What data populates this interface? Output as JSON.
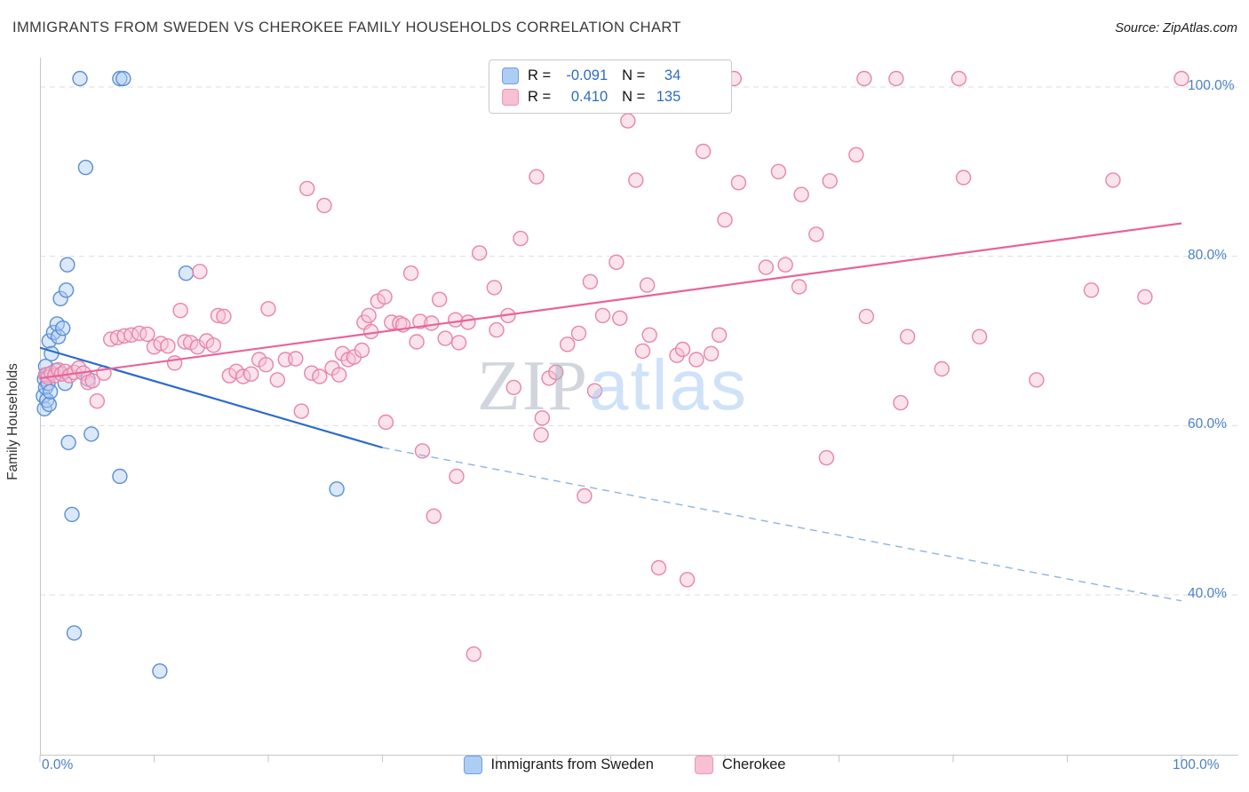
{
  "header": {
    "title": "IMMIGRANTS FROM SWEDEN VS CHEROKEE FAMILY HOUSEHOLDS CORRELATION CHART",
    "source": "Source: ZipAtlas.com"
  },
  "watermark": {
    "zip": "ZIP",
    "atlas": "atlas"
  },
  "legend_box": {
    "rows": [
      {
        "series": "Immigrants from Sweden",
        "r_label": "R =",
        "r_value": "-0.091",
        "n_label": "N =",
        "n_value": "34"
      },
      {
        "series": "Cherokee",
        "r_label": "R =",
        "r_value": "0.410",
        "n_label": "N =",
        "n_value": "135"
      }
    ]
  },
  "axes": {
    "y_title": "Family Households",
    "y_ticks": [
      {
        "label": "100.0%",
        "value": 100
      },
      {
        "label": "80.0%",
        "value": 80
      },
      {
        "label": "60.0%",
        "value": 60
      },
      {
        "label": "40.0%",
        "value": 40
      }
    ],
    "x_left_label": "0.0%",
    "x_right_label": "100.0%"
  },
  "bottom_legend": [
    {
      "label": "Immigrants from Sweden"
    },
    {
      "label": "Cherokee"
    }
  ],
  "colors": {
    "blue_stroke": "#5b8fd4",
    "blue_fill": "#aecdf5",
    "pink_stroke": "#e884ab",
    "pink_fill": "#f7c0d3",
    "blue_trend": "#2b6bc9",
    "blue_trend_dashed": "#8fb3e4",
    "pink_trend": "#e8639a",
    "grid": "#d9dee5",
    "spine": "#c6c6c6",
    "tick_label": "#4a80c9"
  },
  "chart_data": {
    "type": "scatter",
    "xlabel": "Immigrants from Sweden (%)",
    "ylabel": "Family Households",
    "xlim": [
      0,
      100
    ],
    "ylim": [
      21,
      103.5
    ],
    "grid_values": [
      100,
      80,
      60,
      40
    ],
    "series": [
      {
        "name": "Immigrants from Sweden",
        "r": -0.091,
        "n": 34,
        "points": [
          [
            0.3,
            63.5
          ],
          [
            0.4,
            65.5
          ],
          [
            0.4,
            62.0
          ],
          [
            0.5,
            67.0
          ],
          [
            0.5,
            64.5
          ],
          [
            0.6,
            66.0
          ],
          [
            0.6,
            63.0
          ],
          [
            0.7,
            65.0
          ],
          [
            0.8,
            70.0
          ],
          [
            0.8,
            62.5
          ],
          [
            0.9,
            64.0
          ],
          [
            1.0,
            68.5
          ],
          [
            1.2,
            71.0
          ],
          [
            1.4,
            66.5
          ],
          [
            1.5,
            72.0
          ],
          [
            1.6,
            70.5
          ],
          [
            1.8,
            75.0
          ],
          [
            2.0,
            71.5
          ],
          [
            2.2,
            65.0
          ],
          [
            2.3,
            76.0
          ],
          [
            2.4,
            79.0
          ],
          [
            2.5,
            58.0
          ],
          [
            2.8,
            49.5
          ],
          [
            3.0,
            35.5
          ],
          [
            3.5,
            101.0
          ],
          [
            4.0,
            90.5
          ],
          [
            4.2,
            65.5
          ],
          [
            4.5,
            59.0
          ],
          [
            7.0,
            101.0
          ],
          [
            7.3,
            101.0
          ],
          [
            7.0,
            54.0
          ],
          [
            10.5,
            31.0
          ],
          [
            12.8,
            78.0
          ],
          [
            26.0,
            52.5
          ]
        ]
      },
      {
        "name": "Cherokee",
        "r": 0.41,
        "n": 135,
        "points": [
          [
            0.5,
            66.0
          ],
          [
            0.7,
            65.7
          ],
          [
            1.0,
            66.2
          ],
          [
            1.3,
            65.9
          ],
          [
            1.6,
            66.6
          ],
          [
            1.9,
            66.1
          ],
          [
            2.2,
            66.4
          ],
          [
            2.6,
            65.9
          ],
          [
            3.0,
            66.3
          ],
          [
            3.4,
            66.8
          ],
          [
            3.8,
            66.2
          ],
          [
            4.2,
            65.1
          ],
          [
            4.6,
            65.3
          ],
          [
            5.0,
            62.9
          ],
          [
            5.6,
            66.2
          ],
          [
            6.2,
            70.2
          ],
          [
            6.8,
            70.4
          ],
          [
            7.4,
            70.6
          ],
          [
            8.0,
            70.7
          ],
          [
            8.7,
            70.9
          ],
          [
            9.4,
            70.8
          ],
          [
            10.0,
            69.3
          ],
          [
            10.6,
            69.7
          ],
          [
            11.2,
            69.4
          ],
          [
            11.8,
            67.4
          ],
          [
            12.3,
            73.6
          ],
          [
            12.7,
            69.9
          ],
          [
            13.2,
            69.8
          ],
          [
            13.8,
            69.3
          ],
          [
            14.0,
            78.2
          ],
          [
            14.6,
            70.0
          ],
          [
            15.2,
            69.5
          ],
          [
            15.6,
            73.0
          ],
          [
            16.1,
            72.9
          ],
          [
            16.6,
            65.9
          ],
          [
            17.2,
            66.4
          ],
          [
            17.8,
            65.8
          ],
          [
            18.5,
            66.1
          ],
          [
            19.2,
            67.8
          ],
          [
            19.8,
            67.2
          ],
          [
            20.0,
            73.8
          ],
          [
            20.8,
            65.4
          ],
          [
            21.5,
            67.8
          ],
          [
            22.4,
            67.9
          ],
          [
            22.9,
            61.7
          ],
          [
            23.4,
            88.0
          ],
          [
            23.8,
            66.2
          ],
          [
            24.5,
            65.8
          ],
          [
            24.9,
            86.0
          ],
          [
            25.6,
            66.8
          ],
          [
            26.2,
            66.0
          ],
          [
            26.5,
            68.5
          ],
          [
            27.0,
            67.8
          ],
          [
            27.5,
            68.1
          ],
          [
            28.2,
            68.9
          ],
          [
            28.4,
            72.2
          ],
          [
            28.8,
            73.0
          ],
          [
            29.0,
            71.1
          ],
          [
            29.6,
            74.7
          ],
          [
            30.2,
            75.2
          ],
          [
            30.3,
            60.4
          ],
          [
            30.8,
            72.2
          ],
          [
            31.5,
            72.1
          ],
          [
            31.8,
            71.9
          ],
          [
            32.5,
            78.0
          ],
          [
            33.0,
            69.9
          ],
          [
            33.3,
            72.3
          ],
          [
            33.5,
            57.0
          ],
          [
            34.3,
            72.1
          ],
          [
            34.5,
            49.3
          ],
          [
            35.0,
            74.9
          ],
          [
            35.5,
            70.3
          ],
          [
            36.4,
            72.5
          ],
          [
            36.5,
            54.0
          ],
          [
            36.7,
            69.8
          ],
          [
            37.5,
            72.2
          ],
          [
            38.0,
            33.0
          ],
          [
            38.5,
            80.4
          ],
          [
            39.8,
            76.3
          ],
          [
            40.0,
            71.3
          ],
          [
            41.0,
            73.0
          ],
          [
            41.5,
            64.5
          ],
          [
            42.1,
            82.1
          ],
          [
            43.5,
            89.4
          ],
          [
            43.9,
            58.9
          ],
          [
            44.0,
            60.9
          ],
          [
            44.6,
            65.6
          ],
          [
            45.2,
            66.3
          ],
          [
            46.2,
            69.6
          ],
          [
            47.2,
            70.9
          ],
          [
            47.7,
            51.7
          ],
          [
            48.2,
            77.0
          ],
          [
            48.6,
            64.1
          ],
          [
            49.3,
            73.0
          ],
          [
            50.5,
            79.3
          ],
          [
            50.8,
            72.7
          ],
          [
            51.5,
            96.0
          ],
          [
            52.2,
            89.0
          ],
          [
            52.8,
            68.8
          ],
          [
            53.2,
            76.6
          ],
          [
            53.4,
            70.7
          ],
          [
            54.2,
            43.2
          ],
          [
            55.8,
            68.3
          ],
          [
            56.3,
            69.0
          ],
          [
            56.7,
            41.8
          ],
          [
            57.5,
            67.8
          ],
          [
            58.1,
            92.4
          ],
          [
            58.8,
            68.5
          ],
          [
            59.5,
            70.7
          ],
          [
            60.0,
            84.3
          ],
          [
            60.8,
            101.0
          ],
          [
            61.2,
            88.7
          ],
          [
            63.6,
            78.7
          ],
          [
            64.7,
            90.0
          ],
          [
            65.3,
            79.0
          ],
          [
            66.5,
            76.4
          ],
          [
            66.7,
            87.3
          ],
          [
            68.0,
            82.6
          ],
          [
            68.9,
            56.2
          ],
          [
            69.2,
            88.9
          ],
          [
            71.5,
            92.0
          ],
          [
            72.2,
            101.0
          ],
          [
            72.4,
            72.9
          ],
          [
            75.0,
            101.0
          ],
          [
            75.4,
            62.7
          ],
          [
            76.0,
            70.5
          ],
          [
            79.0,
            66.7
          ],
          [
            80.5,
            101.0
          ],
          [
            80.9,
            89.3
          ],
          [
            82.3,
            70.5
          ],
          [
            87.3,
            65.4
          ],
          [
            92.1,
            76.0
          ],
          [
            94.0,
            89.0
          ],
          [
            96.8,
            75.2
          ],
          [
            100.0,
            101.0
          ]
        ]
      }
    ],
    "trendlines": [
      {
        "series": "Immigrants from Sweden",
        "style": "solid",
        "x1": 0,
        "y1": 69.2,
        "x2": 30,
        "y2": 57.4
      },
      {
        "series": "Immigrants from Sweden",
        "style": "dashed",
        "x1": 30,
        "y1": 57.4,
        "x2": 100,
        "y2": 39.3
      },
      {
        "series": "Cherokee",
        "style": "solid",
        "x1": 0,
        "y1": 65.6,
        "x2": 100,
        "y2": 83.9
      }
    ]
  }
}
